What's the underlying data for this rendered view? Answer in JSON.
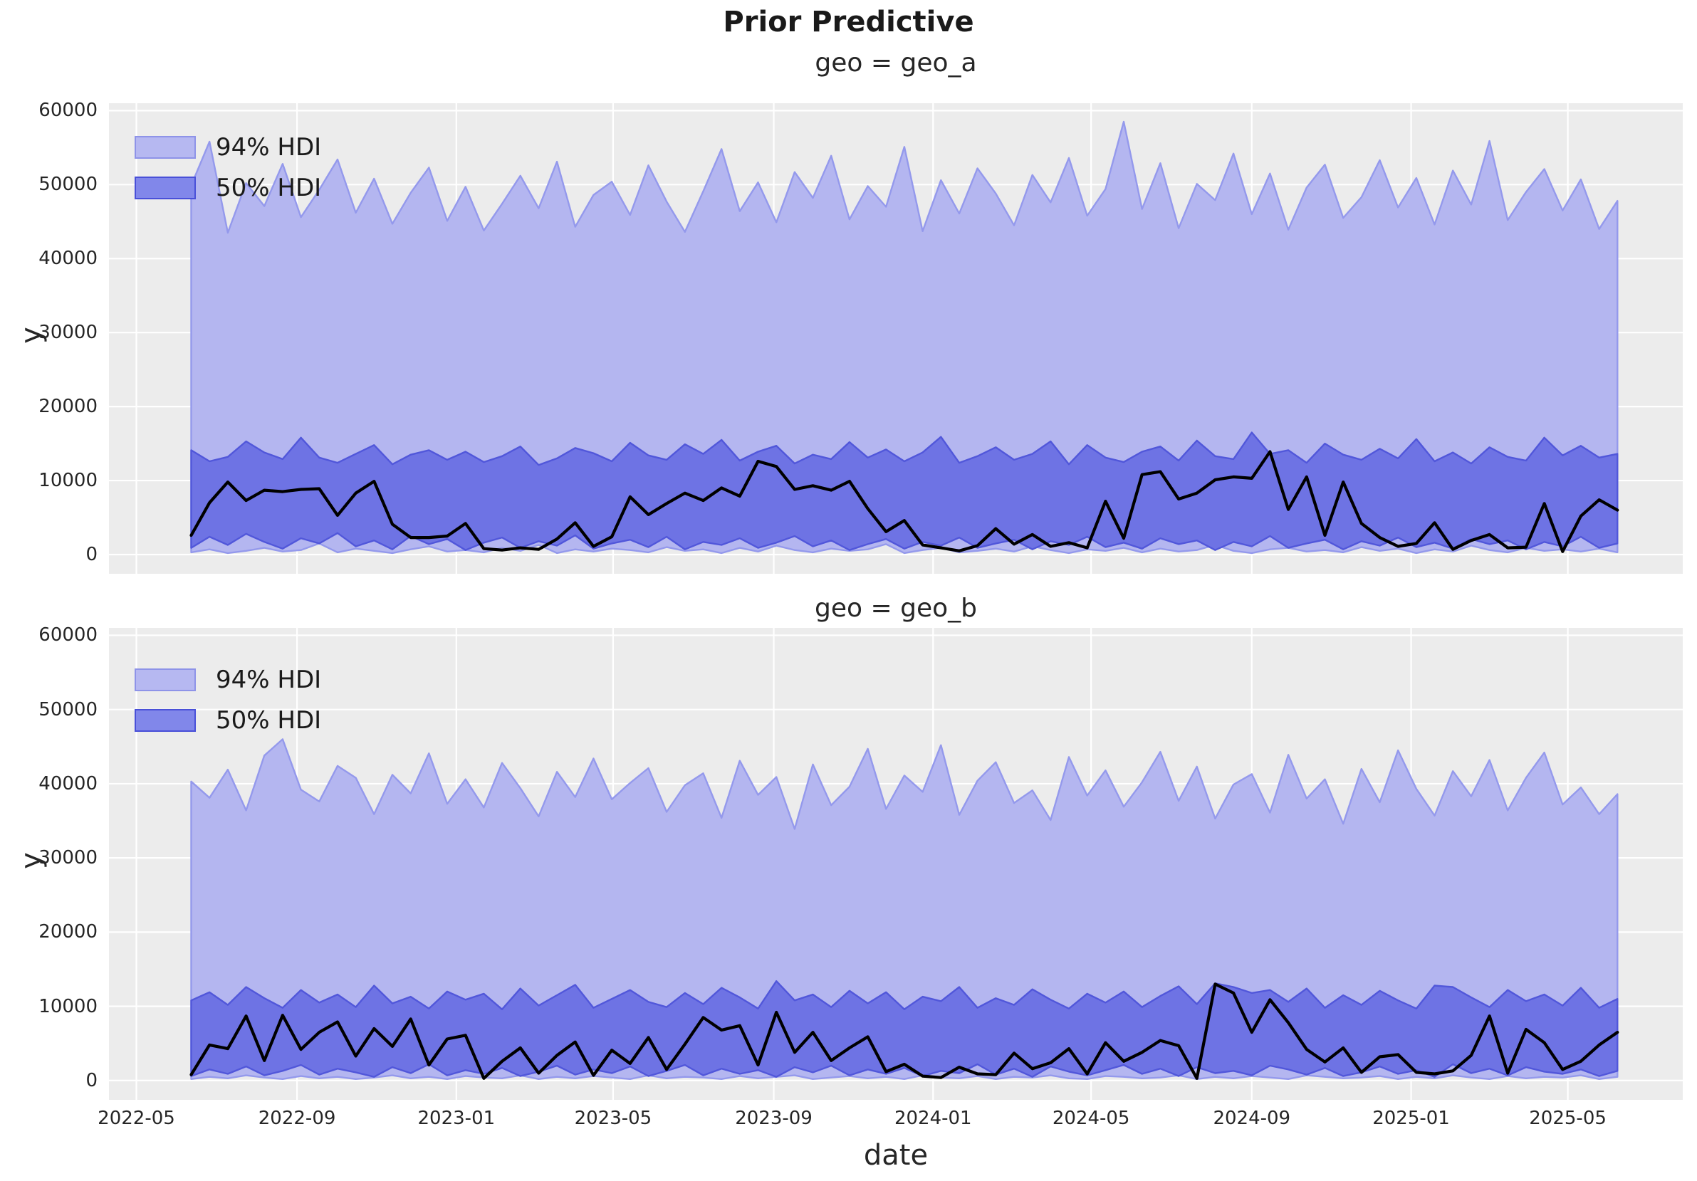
{
  "figure": {
    "title": "Prior Predictive"
  },
  "axes": {
    "xlabel": "date",
    "ylabel": "y",
    "xlim": [
      "2022-04-10",
      "2025-07-28"
    ],
    "ylim": [
      -2600,
      61000
    ],
    "grid": true,
    "xticks": [
      {
        "date": "2022-05-01",
        "label": "2022-05"
      },
      {
        "date": "2022-09-01",
        "label": "2022-09"
      },
      {
        "date": "2023-01-01",
        "label": "2023-01"
      },
      {
        "date": "2023-05-01",
        "label": "2023-05"
      },
      {
        "date": "2023-09-01",
        "label": "2023-09"
      },
      {
        "date": "2024-01-01",
        "label": "2024-01"
      },
      {
        "date": "2024-05-01",
        "label": "2024-05"
      },
      {
        "date": "2024-09-01",
        "label": "2024-09"
      },
      {
        "date": "2025-01-01",
        "label": "2025-01"
      },
      {
        "date": "2025-05-01",
        "label": "2025-05"
      }
    ],
    "yticks": [
      {
        "value": 0,
        "label": "0"
      },
      {
        "value": 10000,
        "label": "10000"
      },
      {
        "value": 20000,
        "label": "20000"
      },
      {
        "value": 30000,
        "label": "30000"
      },
      {
        "value": 40000,
        "label": "40000"
      },
      {
        "value": 50000,
        "label": "50000"
      },
      {
        "value": 60000,
        "label": "60000"
      }
    ]
  },
  "legend": {
    "position": "upper left",
    "items": [
      {
        "label": "94% HDI",
        "fill": "#b6b8f1",
        "edge": "#8e93e8"
      },
      {
        "label": "50% HDI",
        "fill": "#8187ea",
        "edge": "#4950d8"
      }
    ]
  },
  "colors": {
    "figure_bg": "#ffffff",
    "plot_bg": "#ececec",
    "grid": "#ffffff",
    "hdi94_fill": "#b4b6f0",
    "hdi94_edge": "#9499ec",
    "hdi50_fill": "#6e73e4",
    "hdi50_edge": "#5157da",
    "observed_line": "#000000",
    "text": "#262626"
  },
  "chart_data": {
    "type": "area",
    "title": "Prior Predictive",
    "xlabel": "date",
    "ylabel": "y",
    "x_dates": [
      "2022-06-12",
      "2022-06-26",
      "2022-07-10",
      "2022-07-24",
      "2022-08-07",
      "2022-08-21",
      "2022-09-04",
      "2022-09-18",
      "2022-10-02",
      "2022-10-16",
      "2022-10-30",
      "2022-11-13",
      "2022-11-27",
      "2022-12-11",
      "2022-12-25",
      "2023-01-08",
      "2023-01-22",
      "2023-02-05",
      "2023-02-19",
      "2023-03-05",
      "2023-03-19",
      "2023-04-02",
      "2023-04-16",
      "2023-04-30",
      "2023-05-14",
      "2023-05-28",
      "2023-06-11",
      "2023-06-25",
      "2023-07-09",
      "2023-07-23",
      "2023-08-06",
      "2023-08-20",
      "2023-09-03",
      "2023-09-17",
      "2023-10-01",
      "2023-10-15",
      "2023-10-29",
      "2023-11-12",
      "2023-11-26",
      "2023-12-10",
      "2023-12-24",
      "2024-01-07",
      "2024-01-21",
      "2024-02-04",
      "2024-02-18",
      "2024-03-03",
      "2024-03-17",
      "2024-03-31",
      "2024-04-14",
      "2024-04-28",
      "2024-05-12",
      "2024-05-26",
      "2024-06-09",
      "2024-06-23",
      "2024-07-07",
      "2024-07-21",
      "2024-08-04",
      "2024-08-18",
      "2024-09-01",
      "2024-09-15",
      "2024-09-29",
      "2024-10-13",
      "2024-10-27",
      "2024-11-10",
      "2024-11-24",
      "2024-12-08",
      "2024-12-22",
      "2025-01-05",
      "2025-01-19",
      "2025-02-02",
      "2025-02-16",
      "2025-03-02",
      "2025-03-16",
      "2025-03-30",
      "2025-04-13",
      "2025-04-27",
      "2025-05-11",
      "2025-05-25",
      "2025-06-08"
    ],
    "facets": [
      {
        "title": "geo = geo_a",
        "series": {
          "hdi94_upper": [
            49900,
            55800,
            43500,
            50200,
            47100,
            52800,
            45600,
            49300,
            53400,
            46200,
            50800,
            44700,
            48900,
            52300,
            45100,
            49700,
            43800,
            47400,
            51200,
            46800,
            53100,
            44300,
            48600,
            50400,
            45900,
            52600,
            47700,
            43600,
            49100,
            54800,
            46400,
            50300,
            44900,
            51700,
            48200,
            53900,
            45300,
            49800,
            47000,
            55100,
            43700,
            50600,
            46100,
            52200,
            48800,
            44500,
            51300,
            47600,
            53600,
            45800,
            49400,
            58500,
            46700,
            52900,
            44100,
            50100,
            47900,
            54200,
            46000,
            51500,
            43900,
            49600,
            52700,
            45500,
            48300,
            53300,
            46900,
            50900,
            44600,
            51900,
            47300,
            55900,
            45200,
            49000,
            52100,
            46500,
            50700,
            44000,
            47800
          ],
          "hdi94_lower": [
            300,
            700,
            200,
            500,
            900,
            400,
            600,
            1500,
            300,
            800,
            500,
            200,
            700,
            1100,
            400,
            600,
            300,
            900,
            500,
            1300,
            200,
            700,
            400,
            800,
            600,
            300,
            1000,
            500,
            700,
            200,
            900,
            400,
            1200,
            600,
            300,
            800,
            500,
            700,
            1400,
            200,
            600,
            900,
            300,
            500,
            800,
            400,
            1100,
            600,
            200,
            700,
            500,
            900,
            300,
            800,
            400,
            600,
            1300,
            500,
            200,
            700,
            900,
            400,
            600,
            300,
            1000,
            500,
            800,
            200,
            700,
            400,
            1200,
            600,
            300,
            900,
            500,
            700,
            400,
            800,
            300
          ],
          "hdi50_upper": [
            14100,
            12600,
            13200,
            15300,
            13800,
            12900,
            15800,
            13100,
            12400,
            13600,
            14800,
            12200,
            13500,
            14100,
            12800,
            13900,
            12500,
            13300,
            14600,
            12100,
            13000,
            14400,
            13700,
            12600,
            15100,
            13400,
            12800,
            14900,
            13600,
            15500,
            12700,
            13900,
            14700,
            12300,
            13500,
            12900,
            15200,
            13100,
            14200,
            12600,
            13800,
            15900,
            12400,
            13300,
            14500,
            12800,
            13600,
            15300,
            12200,
            14800,
            13100,
            12500,
            13900,
            14600,
            12700,
            15400,
            13300,
            12900,
            16500,
            13600,
            14100,
            12400,
            15000,
            13500,
            12800,
            14300,
            13000,
            15600,
            12600,
            13800,
            12300,
            14500,
            13200,
            12700,
            15800,
            13400,
            14700,
            13100,
            13600
          ],
          "hdi50_lower": [
            900,
            2400,
            1300,
            2800,
            1700,
            800,
            2200,
            1500,
            2900,
            1100,
            1900,
            700,
            2500,
            1400,
            2100,
            600,
            1600,
            2300,
            900,
            1800,
            1200,
            2600,
            800,
            1500,
            2000,
            1000,
            2400,
            700,
            1700,
            1300,
            2200,
            900,
            1600,
            2500,
            1100,
            1900,
            600,
            1400,
            2100,
            800,
            1700,
            1200,
            2300,
            900,
            1500,
            2000,
            700,
            1800,
            1300,
            2400,
            1000,
            1600,
            800,
            2200,
            1400,
            1900,
            600,
            1700,
            1100,
            2500,
            900,
            1500,
            2000,
            700,
            1800,
            1200,
            2300,
            1000,
            1600,
            800,
            2100,
            1400,
            1900,
            700,
            1700,
            1100,
            2400,
            900,
            1500
          ],
          "observed": [
            2600,
            7000,
            9800,
            7300,
            8700,
            8500,
            8800,
            8900,
            5300,
            8300,
            9900,
            4100,
            2300,
            2300,
            2500,
            4200,
            800,
            600,
            900,
            700,
            2100,
            4300,
            1100,
            2400,
            7800,
            5400,
            6900,
            8300,
            7300,
            9000,
            7900,
            12600,
            11900,
            8800,
            9300,
            8700,
            9900,
            6200,
            3100,
            4600,
            1300,
            900,
            500,
            1200,
            3500,
            1400,
            2700,
            1100,
            1600,
            900,
            7200,
            2200,
            10800,
            11200,
            7500,
            8300,
            10100,
            10500,
            10300,
            13900,
            6100,
            10500,
            2600,
            9800,
            4200,
            2300,
            1100,
            1500,
            4300,
            700,
            1900,
            2700,
            900,
            1000,
            6900,
            400,
            5200,
            7400,
            6000
          ]
        }
      },
      {
        "title": "geo = geo_b",
        "series": {
          "hdi94_upper": [
            40300,
            38100,
            41900,
            36400,
            43800,
            46000,
            39200,
            37600,
            42400,
            40800,
            35900,
            41200,
            38700,
            44100,
            37300,
            40600,
            36800,
            42800,
            39400,
            35600,
            41600,
            38200,
            43400,
            37900,
            40100,
            42100,
            36200,
            39800,
            41400,
            35400,
            43100,
            38500,
            40900,
            33900,
            42600,
            37100,
            39600,
            44700,
            36600,
            41100,
            38900,
            45200,
            35800,
            40400,
            42900,
            37400,
            39100,
            35100,
            43600,
            38400,
            41800,
            36900,
            40200,
            44300,
            37700,
            42300,
            35300,
            39900,
            41300,
            36100,
            43900,
            38000,
            40600,
            34600,
            42000,
            37500,
            44500,
            39300,
            35700,
            41700,
            38300,
            43200,
            36400,
            40800,
            44200,
            37200,
            39500,
            35900,
            38600
          ],
          "hdi94_lower": [
            200,
            500,
            300,
            700,
            400,
            200,
            600,
            300,
            500,
            200,
            400,
            700,
            300,
            500,
            200,
            600,
            400,
            300,
            700,
            200,
            500,
            300,
            600,
            400,
            200,
            700,
            300,
            500,
            400,
            200,
            600,
            300,
            500,
            700,
            200,
            400,
            600,
            300,
            500,
            200,
            700,
            400,
            300,
            600,
            200,
            500,
            400,
            700,
            300,
            200,
            600,
            500,
            300,
            400,
            700,
            200,
            500,
            300,
            600,
            400,
            200,
            700,
            500,
            300,
            400,
            600,
            200,
            500,
            300,
            700,
            400,
            200,
            600,
            300,
            500,
            400,
            700,
            200,
            500
          ],
          "hdi50_upper": [
            10800,
            11900,
            10200,
            12600,
            11100,
            9800,
            12200,
            10500,
            11600,
            9900,
            12800,
            10400,
            11300,
            9700,
            12000,
            10900,
            11700,
            9600,
            12400,
            10100,
            11500,
            12900,
            9800,
            11000,
            12200,
            10600,
            9900,
            11800,
            10300,
            12500,
            11200,
            9700,
            13400,
            10800,
            11600,
            9900,
            12100,
            10400,
            11900,
            9600,
            11300,
            10700,
            12600,
            9800,
            11100,
            10200,
            12300,
            10900,
            9700,
            11700,
            10500,
            12000,
            9900,
            11400,
            12700,
            10300,
            13100,
            12600,
            11800,
            12200,
            10600,
            12400,
            9800,
            11500,
            10200,
            12100,
            10800,
            9700,
            12800,
            12600,
            11200,
            9900,
            12200,
            10700,
            11600,
            10100,
            12500,
            9800,
            11000
          ],
          "hdi50_lower": [
            600,
            1500,
            900,
            1900,
            700,
            1300,
            2100,
            800,
            1600,
            1100,
            500,
            1800,
            1000,
            2200,
            700,
            1400,
            900,
            1700,
            600,
            1200,
            2000,
            800,
            1500,
            1000,
            1900,
            600,
            1300,
            2100,
            700,
            1600,
            900,
            1400,
            500,
            1800,
            1100,
            2000,
            700,
            1500,
            900,
            1700,
            600,
            1300,
            1000,
            2200,
            800,
            1600,
            500,
            1900,
            1200,
            700,
            1400,
            2100,
            900,
            1600,
            600,
            1800,
            1000,
            1300,
            700,
            2000,
            1500,
            800,
            1700,
            600,
            1100,
            1900,
            900,
            1400,
            500,
            2200,
            1000,
            1600,
            700,
            1800,
            1200,
            900,
            1500,
            600,
            1300
          ],
          "observed": [
            800,
            4800,
            4300,
            8700,
            2700,
            8800,
            4200,
            6500,
            7900,
            3300,
            7000,
            4600,
            8300,
            2100,
            5600,
            6100,
            300,
            2600,
            4400,
            1000,
            3400,
            5200,
            700,
            4100,
            2300,
            5800,
            1500,
            4900,
            8500,
            6800,
            7400,
            2100,
            9200,
            3800,
            6500,
            2700,
            4400,
            5900,
            1200,
            2200,
            600,
            400,
            1800,
            900,
            800,
            3700,
            1600,
            2400,
            4300,
            900,
            5100,
            2600,
            3800,
            5400,
            4700,
            300,
            13000,
            11800,
            6500,
            10900,
            7800,
            4200,
            2500,
            4400,
            1100,
            3200,
            3500,
            1100,
            900,
            1300,
            3400,
            8700,
            1000,
            6900,
            5100,
            1500,
            2600,
            4800,
            6500
          ]
        }
      }
    ]
  }
}
